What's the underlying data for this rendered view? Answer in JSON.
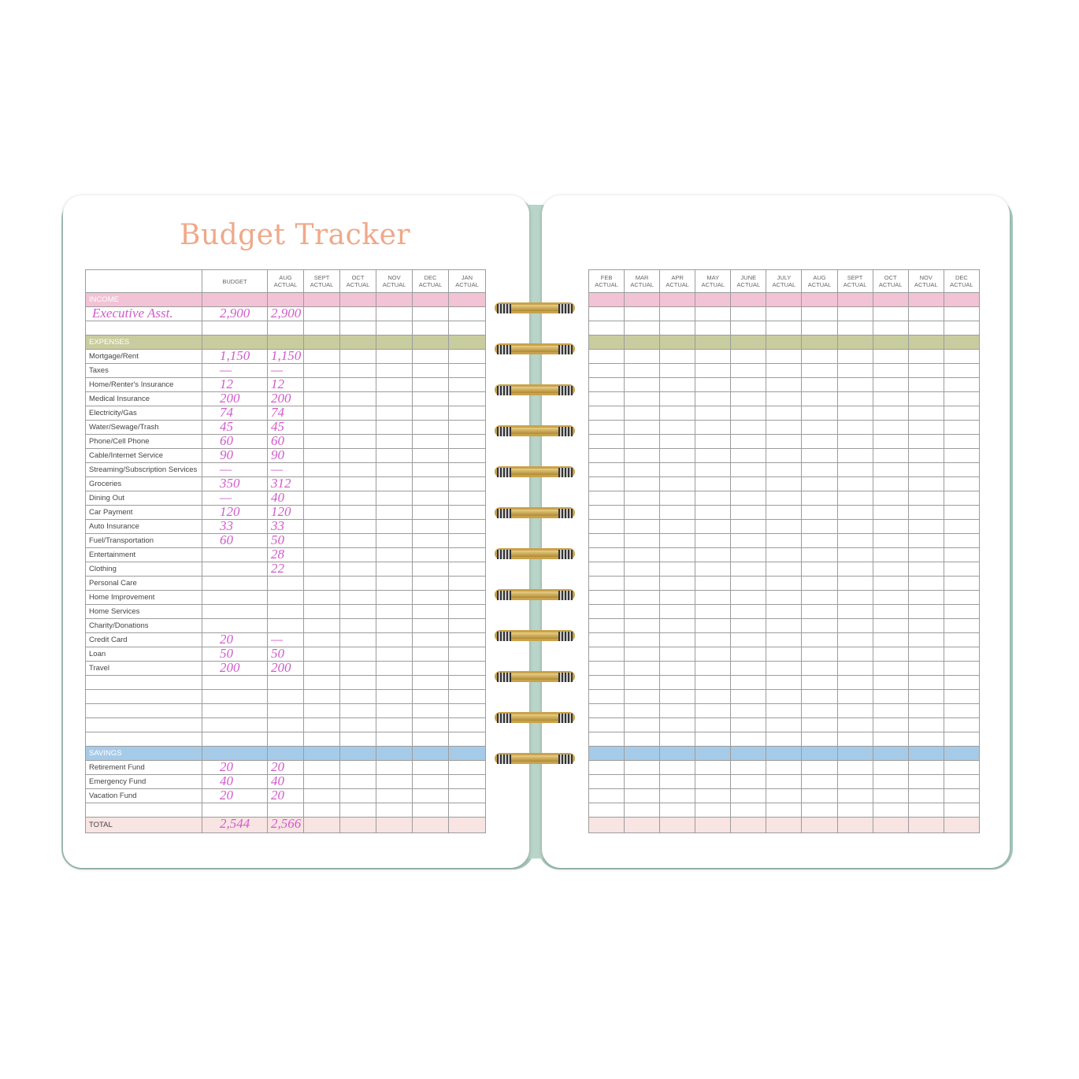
{
  "title": "Budget Tracker",
  "colors": {
    "income": "#f2c3d5",
    "expenses": "#c9cc9f",
    "savings": "#a6cbe9",
    "total": "#f8e4e2",
    "handwriting": "#d25bcd",
    "title": "#efa98a"
  },
  "left_columns": [
    "",
    "BUDGET",
    "AUG\nACTUAL",
    "SEPT\nACTUAL",
    "OCT\nACTUAL",
    "NOV\nACTUAL",
    "DEC\nACTUAL",
    "JAN\nACTUAL"
  ],
  "right_columns": [
    "FEB\nACTUAL",
    "MAR\nACTUAL",
    "APR\nACTUAL",
    "MAY\nACTUAL",
    "JUNE\nACTUAL",
    "JULY\nACTUAL",
    "AUG\nACTUAL",
    "SEPT\nACTUAL",
    "OCT\nACTUAL",
    "NOV\nACTUAL",
    "DEC\nACTUAL"
  ],
  "rows": [
    {
      "type": "band",
      "cls": "income",
      "label": "INCOME"
    },
    {
      "label": "",
      "hw_label": "Executive Asst.",
      "budget": "2,900",
      "aug": "2,900"
    },
    {
      "label": ""
    },
    {
      "type": "band",
      "cls": "expenses",
      "label": "EXPENSES"
    },
    {
      "label": "Mortgage/Rent",
      "budget": "1,150",
      "aug": "1,150"
    },
    {
      "label": "Taxes",
      "budget": "—",
      "aug": "—"
    },
    {
      "label": "Home/Renter's Insurance",
      "budget": "12",
      "aug": "12"
    },
    {
      "label": "Medical Insurance",
      "budget": "200",
      "aug": "200"
    },
    {
      "label": "Electricity/Gas",
      "budget": "74",
      "aug": "74"
    },
    {
      "label": "Water/Sewage/Trash",
      "budget": "45",
      "aug": "45"
    },
    {
      "label": "Phone/Cell Phone",
      "budget": "60",
      "aug": "60"
    },
    {
      "label": "Cable/Internet Service",
      "budget": "90",
      "aug": "90"
    },
    {
      "label": "Streaming/Subscription Services",
      "budget": "—",
      "aug": "—"
    },
    {
      "label": "Groceries",
      "budget": "350",
      "aug": "312"
    },
    {
      "label": "Dining Out",
      "budget": "—",
      "aug": "40"
    },
    {
      "label": "Car Payment",
      "budget": "120",
      "aug": "120"
    },
    {
      "label": "Auto Insurance",
      "budget": "33",
      "aug": "33"
    },
    {
      "label": "Fuel/Transportation",
      "budget": "60",
      "aug": "50"
    },
    {
      "label": "Entertainment",
      "aug": "28"
    },
    {
      "label": "Clothing",
      "aug": "22"
    },
    {
      "label": "Personal Care"
    },
    {
      "label": "Home Improvement"
    },
    {
      "label": "Home Services"
    },
    {
      "label": "Charity/Donations"
    },
    {
      "label": "Credit Card",
      "budget": "20",
      "aug": "—"
    },
    {
      "label": "Loan",
      "budget": "50",
      "aug": "50"
    },
    {
      "label": "Travel",
      "budget": "200",
      "aug": "200"
    },
    {
      "label": ""
    },
    {
      "label": ""
    },
    {
      "label": ""
    },
    {
      "label": ""
    },
    {
      "label": ""
    },
    {
      "type": "band",
      "cls": "savings",
      "label": "SAVINGS"
    },
    {
      "label": "Retirement Fund",
      "budget": "20",
      "aug": "20"
    },
    {
      "label": "Emergency Fund",
      "budget": "40",
      "aug": "40"
    },
    {
      "label": "Vacation Fund",
      "budget": "20",
      "aug": "20"
    },
    {
      "label": ""
    },
    {
      "type": "total",
      "cls": "total",
      "label": "TOTAL",
      "budget": "2,544",
      "aug": "2,566"
    }
  ]
}
